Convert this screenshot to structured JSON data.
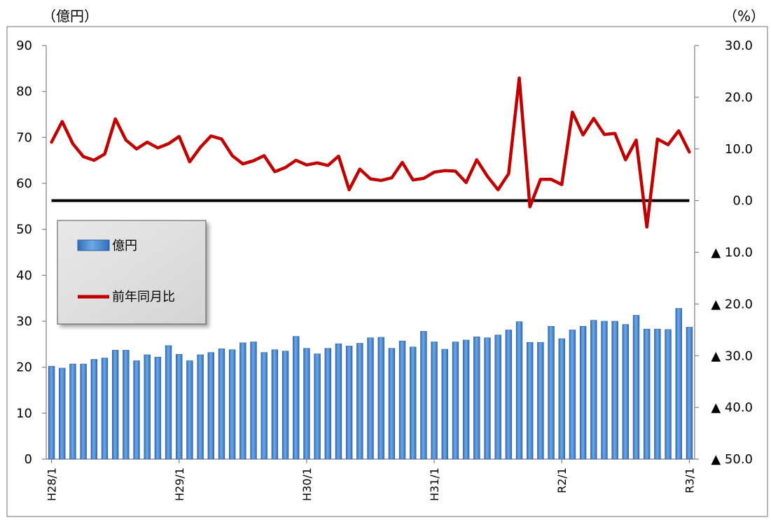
{
  "chart_data": {
    "type": "bar",
    "combo": [
      "bar",
      "line"
    ],
    "left_unit": "（億円）",
    "right_unit": "（%）",
    "y_left": {
      "ylim": [
        0,
        90
      ],
      "ticks": [
        {
          "value": 0,
          "label": "0"
        },
        {
          "value": 10,
          "label": "10"
        },
        {
          "value": 20,
          "label": "20"
        },
        {
          "value": 30,
          "label": "30"
        },
        {
          "value": 40,
          "label": "40"
        },
        {
          "value": 50,
          "label": "50"
        },
        {
          "value": 60,
          "label": "60"
        },
        {
          "value": 70,
          "label": "70"
        },
        {
          "value": 80,
          "label": "80"
        },
        {
          "value": 90,
          "label": "90"
        }
      ]
    },
    "y_right": {
      "ylim": [
        -50,
        30
      ],
      "ticks": [
        {
          "value": 30,
          "label": "30.0"
        },
        {
          "value": 20,
          "label": "20.0"
        },
        {
          "value": 10,
          "label": "10.0"
        },
        {
          "value": 0,
          "label": "0.0"
        },
        {
          "value": -10,
          "label": "▲ 10.0"
        },
        {
          "value": -20,
          "label": "▲ 20.0"
        },
        {
          "value": -30,
          "label": "▲ 30.0"
        },
        {
          "value": -40,
          "label": "▲ 40.0"
        },
        {
          "value": -50,
          "label": "▲ 50.0"
        }
      ]
    },
    "x_labels": [
      {
        "index": 0,
        "label": "H28/1"
      },
      {
        "index": 12,
        "label": "H29/1"
      },
      {
        "index": 24,
        "label": "H30/1"
      },
      {
        "index": 36,
        "label": "H31/1"
      },
      {
        "index": 48,
        "label": "R2/1"
      },
      {
        "index": 60,
        "label": "R3/1"
      }
    ],
    "series": [
      {
        "name": "億円",
        "type": "bar",
        "axis": "left",
        "color": "#4a90d9",
        "values": [
          20.2,
          19.8,
          20.7,
          20.7,
          21.7,
          22.0,
          23.7,
          23.7,
          21.4,
          22.7,
          22.2,
          24.7,
          22.8,
          21.4,
          22.7,
          23.2,
          24.0,
          23.8,
          25.3,
          25.5,
          23.2,
          23.8,
          23.5,
          26.7,
          24.1,
          22.9,
          24.1,
          25.1,
          24.6,
          25.2,
          26.4,
          26.5,
          24.1,
          25.7,
          24.4,
          27.8,
          25.5,
          23.9,
          25.5,
          25.9,
          26.6,
          26.4,
          27.0,
          28.1,
          29.9,
          25.4,
          25.4,
          28.9,
          26.2,
          28.1,
          28.9,
          30.2,
          30.0,
          30.0,
          29.3,
          31.3,
          28.3,
          28.3,
          28.2,
          32.8,
          28.7
        ]
      },
      {
        "name": "前年同月比",
        "type": "line",
        "axis": "right",
        "color": "#c00000",
        "values": [
          11.3,
          15.3,
          11.0,
          8.5,
          7.8,
          9.0,
          15.8,
          11.7,
          10.0,
          11.3,
          10.2,
          11.0,
          12.4,
          7.5,
          10.3,
          12.5,
          11.9,
          8.7,
          7.1,
          7.7,
          8.7,
          5.6,
          6.4,
          7.8,
          6.9,
          7.3,
          6.8,
          8.6,
          2.1,
          6.1,
          4.2,
          3.9,
          4.4,
          7.4,
          4.0,
          4.3,
          5.5,
          5.8,
          5.7,
          3.5,
          7.9,
          4.7,
          2.1,
          5.2,
          23.7,
          -1.2,
          4.1,
          4.1,
          3.1,
          17.1,
          12.7,
          15.9,
          12.8,
          13.0,
          7.9,
          11.7,
          -5.1,
          11.9,
          10.8,
          13.5,
          9.4
        ]
      }
    ],
    "reference_line": {
      "axis": "right",
      "value": 0,
      "color": "#000000"
    },
    "legend": {
      "placement": "left-middle",
      "items": [
        {
          "label": "億円",
          "kind": "bar",
          "color": "#4a90d9"
        },
        {
          "label": "前年同月比",
          "kind": "line",
          "color": "#c00000"
        }
      ]
    },
    "grid": false
  }
}
